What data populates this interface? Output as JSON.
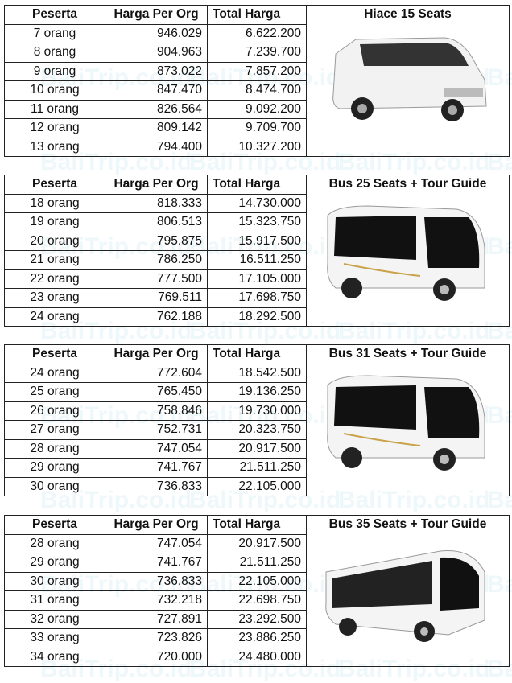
{
  "watermark": "BaliTrip.co.id",
  "headers": {
    "peserta": "Peserta",
    "harga": "Harga Per Org",
    "total": "Total Harga"
  },
  "tables": [
    {
      "title": "Hiace 15 Seats",
      "vehicle": "van",
      "rows": [
        [
          "7 orang",
          "946.029",
          "6.622.200"
        ],
        [
          "8 orang",
          "904.963",
          "7.239.700"
        ],
        [
          "9 orang",
          "873.022",
          "7.857.200"
        ],
        [
          "10 orang",
          "847.470",
          "8.474.700"
        ],
        [
          "11 orang",
          "826.564",
          "9.092.200"
        ],
        [
          "12 orang",
          "809.142",
          "9.709.700"
        ],
        [
          "13 orang",
          "794.400",
          "10.327.200"
        ]
      ]
    },
    {
      "title": "Bus 25 Seats + Tour Guide",
      "vehicle": "minibus",
      "rows": [
        [
          "18 orang",
          "818.333",
          "14.730.000"
        ],
        [
          "19 orang",
          "806.513",
          "15.323.750"
        ],
        [
          "20 orang",
          "795.875",
          "15.917.500"
        ],
        [
          "21 orang",
          "786.250",
          "16.511.250"
        ],
        [
          "22 orang",
          "777.500",
          "17.105.000"
        ],
        [
          "23 orang",
          "769.511",
          "17.698.750"
        ],
        [
          "24 orang",
          "762.188",
          "18.292.500"
        ]
      ]
    },
    {
      "title": "Bus 31 Seats + Tour Guide",
      "vehicle": "minibus",
      "rows": [
        [
          "24 orang",
          "772.604",
          "18.542.500"
        ],
        [
          "25 orang",
          "765.450",
          "19.136.250"
        ],
        [
          "26 orang",
          "758.846",
          "19.730.000"
        ],
        [
          "27 orang",
          "752.731",
          "20.323.750"
        ],
        [
          "28 orang",
          "747.054",
          "20.917.500"
        ],
        [
          "29 orang",
          "741.767",
          "21.511.250"
        ],
        [
          "30 orang",
          "736.833",
          "22.105.000"
        ]
      ]
    },
    {
      "title": "Bus 35 Seats + Tour Guide",
      "vehicle": "bus",
      "rows": [
        [
          "28 orang",
          "747.054",
          "20.917.500"
        ],
        [
          "29 orang",
          "741.767",
          "21.511.250"
        ],
        [
          "30 orang",
          "736.833",
          "22.105.000"
        ],
        [
          "31 orang",
          "732.218",
          "22.698.750"
        ],
        [
          "32 orang",
          "727.891",
          "23.292.500"
        ],
        [
          "33 orang",
          "723.826",
          "23.886.250"
        ],
        [
          "34 orang",
          "720.000",
          "24.480.000"
        ]
      ]
    }
  ]
}
